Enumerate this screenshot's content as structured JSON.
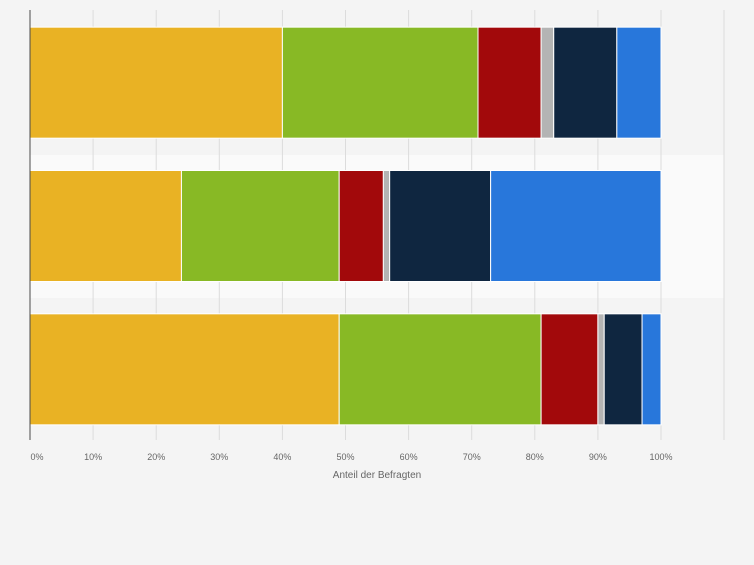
{
  "chart_data": {
    "type": "bar",
    "orientation": "horizontal",
    "stacked": true,
    "xlabel": "Anteil der Befragten",
    "xlim": [
      0,
      100
    ],
    "x_ticks": [
      "0%",
      "10%",
      "20%",
      "30%",
      "40%",
      "50%",
      "60%",
      "70%",
      "80%",
      "90%",
      "100%"
    ],
    "grid": true,
    "categories": [
      "",
      "",
      ""
    ],
    "series": [
      {
        "color": "#e9b224",
        "values": [
          40,
          24,
          49
        ]
      },
      {
        "color": "#88b925",
        "values": [
          31,
          25,
          32
        ]
      },
      {
        "color": "#a2090b",
        "values": [
          10,
          7,
          9
        ]
      },
      {
        "color": "#b4b4b4",
        "values": [
          2,
          1,
          1
        ]
      },
      {
        "color": "#0f2640",
        "values": [
          10,
          16,
          6
        ]
      },
      {
        "color": "#2877db",
        "values": [
          7,
          27,
          3
        ]
      }
    ]
  }
}
